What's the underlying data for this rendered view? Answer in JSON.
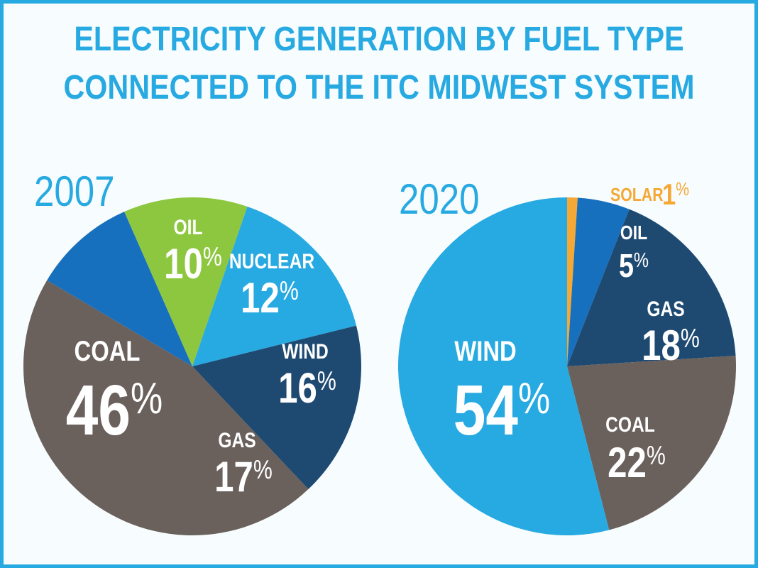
{
  "chart_data": [
    {
      "type": "pie",
      "title": "ELECTRICITY GENERATION BY FUEL TYPE CONNECTED TO THE ITC MIDWEST SYSTEM",
      "year": "2007",
      "slices": [
        {
          "label": "OIL",
          "value": 10,
          "display": "10%",
          "color": "#1770BD",
          "text_color": "#FFFFFF"
        },
        {
          "label": "NUCLEAR",
          "value": 12,
          "display": "12%",
          "color": "#8DC63F",
          "text_color": "#FFFFFF"
        },
        {
          "label": "WIND",
          "value": 16,
          "display": "16%",
          "color": "#27A9E1",
          "text_color": "#FFFFFF"
        },
        {
          "label": "GAS",
          "value": 17,
          "display": "17%",
          "color": "#1E4A72",
          "text_color": "#FFFFFF"
        },
        {
          "label": "COAL",
          "value": 46,
          "display": "46%",
          "color": "#6A605C",
          "text_color": "#FFFFFF"
        }
      ]
    },
    {
      "type": "pie",
      "year": "2020",
      "slices": [
        {
          "label": "SOLAR",
          "value": 1,
          "display": "1%",
          "color": "#F5A834",
          "text_color": "#F5A834"
        },
        {
          "label": "OIL",
          "value": 5,
          "display": "5%",
          "color": "#1770BD",
          "text_color": "#FFFFFF"
        },
        {
          "label": "GAS",
          "value": 18,
          "display": "18%",
          "color": "#1E4A72",
          "text_color": "#FFFFFF"
        },
        {
          "label": "COAL",
          "value": 22,
          "display": "22%",
          "color": "#6A605C",
          "text_color": "#FFFFFF"
        },
        {
          "label": "WIND",
          "value": 54,
          "display": "54%",
          "color": "#27A9E1",
          "text_color": "#FFFFFF"
        }
      ]
    }
  ],
  "header": {
    "title_line1": "ELECTRICITY GENERATION BY FUEL TYPE",
    "title_line2": "CONNECTED TO THE ITC MIDWEST SYSTEM"
  },
  "colors": {
    "accent": "#27A9E1",
    "background": "#F7FCFE"
  }
}
